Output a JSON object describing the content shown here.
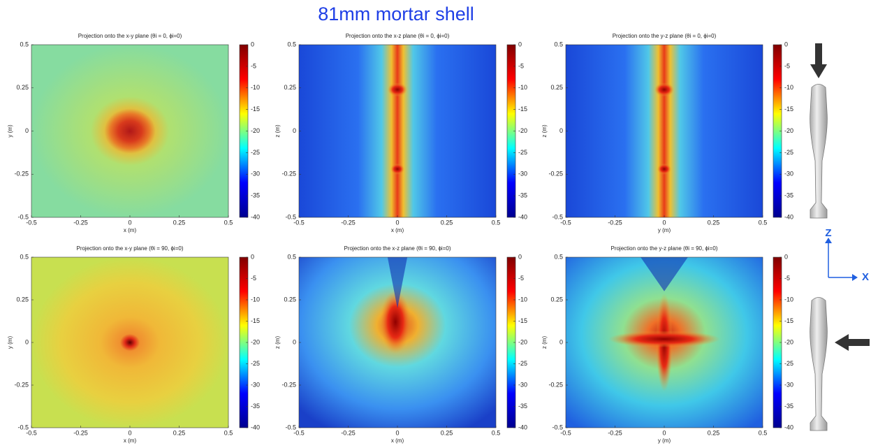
{
  "title": "81mm mortar shell",
  "axes_labels": {
    "z": "Z",
    "x": "X"
  },
  "chart_data": [
    {
      "type": "heatmap",
      "title": "Projection onto the x-y plane (θi = 0, ϕi=0)",
      "x_label": "x (m)",
      "y_label": "y (m)",
      "xlim": [
        -0.5,
        0.5
      ],
      "xticks": [
        -0.5,
        -0.25,
        0,
        0.25,
        0.5
      ],
      "ylim": [
        -0.5,
        0.5
      ],
      "yticks": [
        -0.5,
        -0.25,
        0,
        0.25,
        0.5
      ],
      "clim": [
        -40,
        0
      ],
      "cticks": [
        -40,
        -35,
        -30,
        -25,
        -20,
        -15,
        -10,
        -5,
        0
      ],
      "colormap": [
        "#00008f",
        "#0000ff",
        "#00ffff",
        "#ffff00",
        "#ff0000",
        "#800000"
      ]
    },
    {
      "type": "heatmap",
      "title": "Projection onto the x-z plane (θi = 0, ϕi=0)",
      "x_label": "x (m)",
      "y_label": "z (m)",
      "xlim": [
        -0.5,
        0.5
      ],
      "xticks": [
        -0.5,
        -0.25,
        0,
        0.25,
        0.5
      ],
      "ylim": [
        -0.5,
        0.5
      ],
      "yticks": [
        -0.5,
        -0.25,
        0,
        0.25,
        0.5
      ],
      "clim": [
        -40,
        0
      ],
      "cticks": [
        -40,
        -35,
        -30,
        -25,
        -20,
        -15,
        -10,
        -5,
        0
      ],
      "colormap": [
        "#00008f",
        "#0000ff",
        "#00ffff",
        "#ffff00",
        "#ff0000",
        "#800000"
      ]
    },
    {
      "type": "heatmap",
      "title": "Projection onto the y-z plane (θi = 0, ϕi=0)",
      "x_label": "y (m)",
      "y_label": "z (m)",
      "xlim": [
        -0.5,
        0.5
      ],
      "xticks": [
        -0.5,
        -0.25,
        0,
        0.25,
        0.5
      ],
      "ylim": [
        -0.5,
        0.5
      ],
      "yticks": [
        -0.5,
        -0.25,
        0,
        0.25,
        0.5
      ],
      "clim": [
        -40,
        0
      ],
      "cticks": [
        -40,
        -35,
        -30,
        -25,
        -20,
        -15,
        -10,
        -5,
        0
      ],
      "colormap": [
        "#00008f",
        "#0000ff",
        "#00ffff",
        "#ffff00",
        "#ff0000",
        "#800000"
      ]
    },
    {
      "type": "heatmap",
      "title": "Projection onto the x-y plane (θi = 90, ϕi=0)",
      "x_label": "x (m)",
      "y_label": "y (m)",
      "xlim": [
        -0.5,
        0.5
      ],
      "xticks": [
        -0.5,
        -0.25,
        0,
        0.25,
        0.5
      ],
      "ylim": [
        -0.5,
        0.5
      ],
      "yticks": [
        -0.5,
        -0.25,
        0,
        0.25,
        0.5
      ],
      "clim": [
        -40,
        0
      ],
      "cticks": [
        -40,
        -35,
        -30,
        -25,
        -20,
        -15,
        -10,
        -5,
        0
      ],
      "colormap": [
        "#00008f",
        "#0000ff",
        "#00ffff",
        "#ffff00",
        "#ff0000",
        "#800000"
      ]
    },
    {
      "type": "heatmap",
      "title": "Projection onto the x-z plane (θi = 90, ϕi=0)",
      "x_label": "x (m)",
      "y_label": "z (m)",
      "xlim": [
        -0.5,
        0.5
      ],
      "xticks": [
        -0.5,
        -0.25,
        0,
        0.25,
        0.5
      ],
      "ylim": [
        -0.5,
        0.5
      ],
      "yticks": [
        -0.5,
        -0.25,
        0,
        0.25,
        0.5
      ],
      "clim": [
        -40,
        0
      ],
      "cticks": [
        -40,
        -35,
        -30,
        -25,
        -20,
        -15,
        -10,
        -5,
        0
      ],
      "colormap": [
        "#00008f",
        "#0000ff",
        "#00ffff",
        "#ffff00",
        "#ff0000",
        "#800000"
      ]
    },
    {
      "type": "heatmap",
      "title": "Projection onto the y-z plane (θi = 90, ϕi=0)",
      "x_label": "y (m)",
      "y_label": "z (m)",
      "xlim": [
        -0.5,
        0.5
      ],
      "xticks": [
        -0.5,
        -0.25,
        0,
        0.25,
        0.5
      ],
      "ylim": [
        -0.5,
        0.5
      ],
      "yticks": [
        -0.5,
        -0.25,
        0,
        0.25,
        0.5
      ],
      "clim": [
        -40,
        0
      ],
      "cticks": [
        -40,
        -35,
        -30,
        -25,
        -20,
        -15,
        -10,
        -5,
        0
      ],
      "colormap": [
        "#00008f",
        "#0000ff",
        "#00ffff",
        "#ffff00",
        "#ff0000",
        "#800000"
      ]
    }
  ]
}
